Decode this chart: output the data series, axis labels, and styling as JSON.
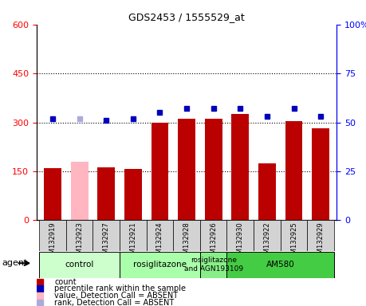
{
  "title": "GDS2453 / 1555529_at",
  "samples": [
    "GSM132919",
    "GSM132923",
    "GSM132927",
    "GSM132921",
    "GSM132924",
    "GSM132928",
    "GSM132926",
    "GSM132930",
    "GSM132922",
    "GSM132925",
    "GSM132929"
  ],
  "counts": [
    160,
    180,
    163,
    158,
    298,
    312,
    312,
    325,
    175,
    305,
    282
  ],
  "counts_absent": [
    false,
    true,
    false,
    false,
    false,
    false,
    false,
    false,
    false,
    false,
    false
  ],
  "percentile_ranks": [
    52,
    52,
    51,
    52,
    55,
    57,
    57,
    57,
    53,
    57,
    53
  ],
  "ranks_absent": [
    false,
    true,
    false,
    false,
    false,
    false,
    false,
    false,
    false,
    false,
    false
  ],
  "ylim_left": [
    0,
    600
  ],
  "ylim_right": [
    0,
    100
  ],
  "yticks_left": [
    0,
    150,
    300,
    450,
    600
  ],
  "yticks_right": [
    0,
    25,
    50,
    75,
    100
  ],
  "bar_color_normal": "#BB0000",
  "bar_color_absent": "#FFB6C1",
  "dot_color_normal": "#0000BB",
  "dot_color_absent": "#AAAADD",
  "groups": [
    {
      "label": "control",
      "start": 0,
      "end": 3,
      "color": "#CCFFCC"
    },
    {
      "label": "rosiglitazone",
      "start": 3,
      "end": 6,
      "color": "#AAFFAA"
    },
    {
      "label": "rosiglitazone\nand AGN193109",
      "start": 6,
      "end": 7,
      "color": "#88EE88"
    },
    {
      "label": "AM580",
      "start": 7,
      "end": 11,
      "color": "#44CC44"
    }
  ],
  "legend_items": [
    {
      "label": "count",
      "color": "#BB0000"
    },
    {
      "label": "percentile rank within the sample",
      "color": "#0000BB"
    },
    {
      "label": "value, Detection Call = ABSENT",
      "color": "#FFB6C1"
    },
    {
      "label": "rank, Detection Call = ABSENT",
      "color": "#AAAADD"
    }
  ],
  "agent_label": "agent",
  "sample_bg_color": "#D3D3D3",
  "plot_bg_color": "#FFFFFF"
}
